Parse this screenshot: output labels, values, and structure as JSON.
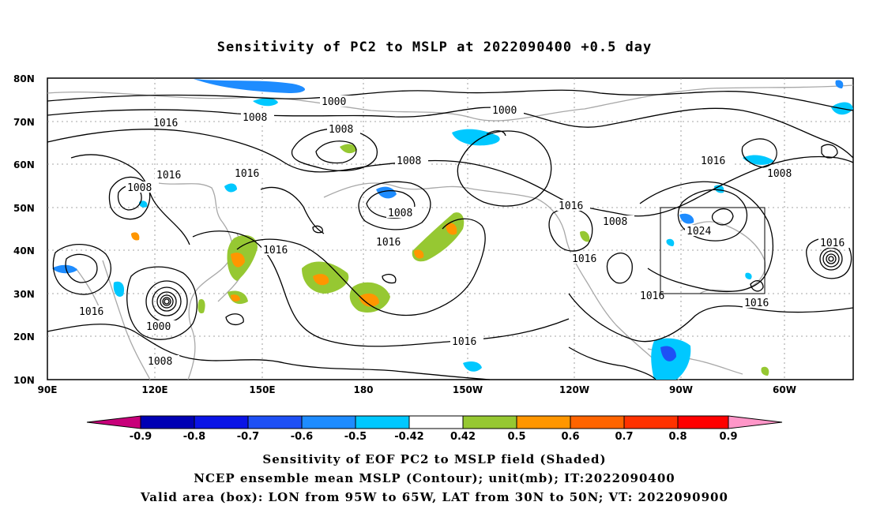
{
  "title": "Sensitivity of PC2 to MSLP at 2022090400 +0.5 day",
  "lat_labels": [
    "80N",
    "70N",
    "60N",
    "50N",
    "40N",
    "30N",
    "20N",
    "10N"
  ],
  "lon_labels": [
    "90E",
    "120E",
    "150E",
    "180",
    "150W",
    "120W",
    "90W",
    "60W"
  ],
  "contour_labels": [
    {
      "text": "1000",
      "ref": "a"
    },
    {
      "text": "1008",
      "ref": "b"
    },
    {
      "text": "1016",
      "ref": "c"
    },
    {
      "text": "1008",
      "ref": "d"
    },
    {
      "text": "1000",
      "ref": "e"
    },
    {
      "text": "1008",
      "ref": "f"
    },
    {
      "text": "1016",
      "ref": "g"
    },
    {
      "text": "1008",
      "ref": "h"
    },
    {
      "text": "1016",
      "ref": "i"
    },
    {
      "text": "1008",
      "ref": "j"
    },
    {
      "text": "1016",
      "ref": "k"
    },
    {
      "text": "1016",
      "ref": "l"
    },
    {
      "text": "1016",
      "ref": "m"
    },
    {
      "text": "1008",
      "ref": "n"
    },
    {
      "text": "1016",
      "ref": "o"
    },
    {
      "text": "1024",
      "ref": "p"
    },
    {
      "text": "1016",
      "ref": "q"
    },
    {
      "text": "1016",
      "ref": "r"
    },
    {
      "text": "1016",
      "ref": "s"
    },
    {
      "text": "1016",
      "ref": "t"
    },
    {
      "text": "1016",
      "ref": "u"
    },
    {
      "text": "1000",
      "ref": "v"
    },
    {
      "text": "1008",
      "ref": "w"
    },
    {
      "text": "1016",
      "ref": "x"
    },
    {
      "text": "1008",
      "ref": "y"
    }
  ],
  "colorbar": {
    "labels": [
      "-0.9",
      "-0.8",
      "-0.7",
      "-0.6",
      "-0.5",
      "-0.42",
      "0.42",
      "0.5",
      "0.6",
      "0.7",
      "0.8",
      "0.9"
    ],
    "colors": [
      "#c8007a",
      "#0000b4",
      "#0a14e6",
      "#1e50f5",
      "#1e8cff",
      "#00c8ff",
      "#ffffff",
      "#96c832",
      "#ff9600",
      "#ff6400",
      "#ff3200",
      "#ff0000",
      "#ff96c8"
    ]
  },
  "captions": [
    "Sensitivity of EOF PC2 to MSLP field (Shaded)",
    "NCEP ensemble mean MSLP (Contour); unit(mb); IT:2022090400",
    "Valid area (box): LON from 95W to 65W, LAT from 30N to 50N; VT: 2022090900"
  ]
}
